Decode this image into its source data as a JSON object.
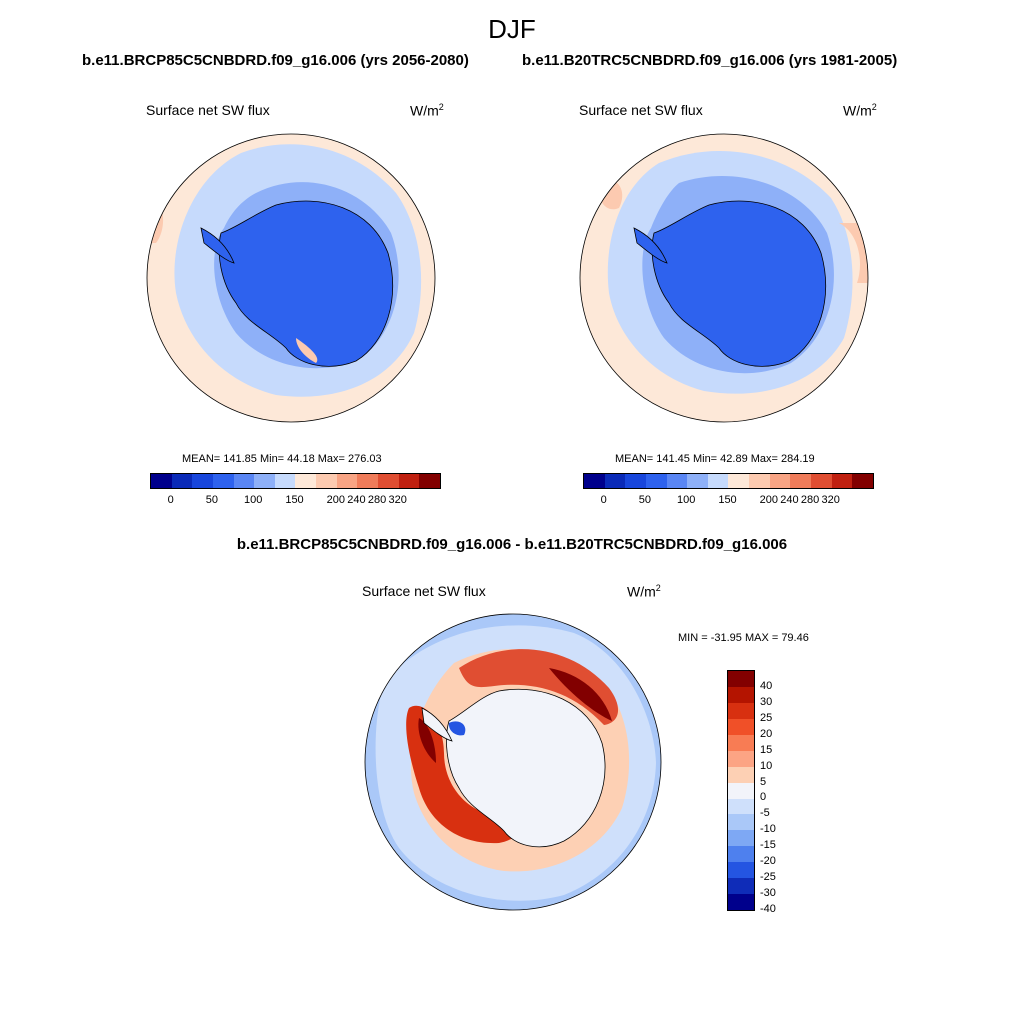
{
  "title": "DJF",
  "case_left": "b.e11.BRCP85C5CNBDRD.f09_g16.006 (yrs 2056-2080)",
  "case_right": "b.e11.B20TRC5CNBDRD.f09_g16.006 (yrs 1981-2005)",
  "diff_title": "b.e11.BRCP85C5CNBDRD.f09_g16.006 - b.e11.B20TRC5CNBDRD.f09_g16.006",
  "var_label": "Surface net SW flux",
  "units": "W/m",
  "units_sup": "2",
  "chart_data": [
    {
      "type": "heatmap",
      "title": "Surface net SW flux",
      "units": "W/m2",
      "projection": "south polar stereographic",
      "stats": {
        "mean": "141.85",
        "min": "44.18",
        "max": "276.03",
        "text": "MEAN= 141.85  Min=  44.18  Max= 276.03"
      },
      "colorbar_levels": [
        0,
        50,
        100,
        150,
        200,
        240,
        280,
        320
      ],
      "colorbar_tick_labels": [
        "0",
        "50",
        "100",
        "150",
        "200",
        "240",
        "280",
        "320"
      ]
    },
    {
      "type": "heatmap",
      "title": "Surface net SW flux",
      "units": "W/m2",
      "projection": "south polar stereographic",
      "stats": {
        "mean": "141.45",
        "min": "42.89",
        "max": "284.19",
        "text": "MEAN= 141.45  Min=  42.89  Max= 284.19"
      },
      "colorbar_levels": [
        0,
        50,
        100,
        150,
        200,
        240,
        280,
        320
      ],
      "colorbar_tick_labels": [
        "0",
        "50",
        "100",
        "150",
        "200",
        "240",
        "280",
        "320"
      ]
    },
    {
      "type": "heatmap",
      "title": "Surface net SW flux",
      "units": "W/m2",
      "projection": "south polar stereographic",
      "stats": {
        "min": "-31.95",
        "max": "79.46",
        "text": "MIN = -31.95 MAX =  79.46"
      },
      "colorbar_levels": [
        40,
        30,
        25,
        20,
        15,
        10,
        5,
        0,
        -5,
        -10,
        -15,
        -20,
        -25,
        -30,
        -40
      ],
      "colorbar_tick_labels": [
        "40",
        "30",
        "25",
        "20",
        "15",
        "10",
        "5",
        "0",
        "-5",
        "-10",
        "-15",
        "-20",
        "-25",
        "-30",
        "-40"
      ]
    }
  ],
  "colors": {
    "abs_scale": [
      "#00008c",
      "#0a2ab8",
      "#1846dc",
      "#2e62ee",
      "#5a86f4",
      "#8eb0f8",
      "#c6dafc",
      "#fde8d8",
      "#fccab0",
      "#f8a484",
      "#f07c5a",
      "#e04e32",
      "#c02010",
      "#820000"
    ],
    "diff_scale": [
      "#820000",
      "#b41400",
      "#d83010",
      "#f05028",
      "#f87c54",
      "#fca484",
      "#fdd0b4",
      "#f2f4fa",
      "#cfe0fb",
      "#aac8f8",
      "#7ea8f4",
      "#4e80ee",
      "#2455e2",
      "#0f2cb8",
      "#00008c"
    ],
    "ocean_abs": "#fde8d8",
    "antarctica_abs": "#2e62ee"
  }
}
